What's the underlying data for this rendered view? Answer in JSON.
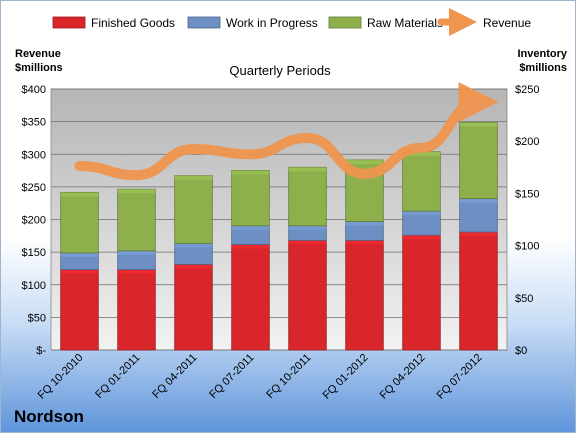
{
  "chart_data": {
    "type": "bar",
    "title": "Quarterly Periods",
    "company": "Nordson",
    "categories": [
      "FQ 10-2010",
      "FQ 01-2011",
      "FQ 04-2011",
      "FQ 07-2011",
      "FQ 10-2011",
      "FQ 01-2012",
      "FQ 04-2012",
      "FQ 07-2012"
    ],
    "stacked": true,
    "series": [
      {
        "name": "Finished Goods",
        "color": "#d9262b",
        "axis": "right",
        "values": [
          77,
          77,
          82,
          101,
          105,
          105,
          110,
          113
        ]
      },
      {
        "name": "Work in Progress",
        "color": "#6d8fc3",
        "axis": "right",
        "values": [
          16,
          18,
          20,
          18,
          14,
          18,
          23,
          32
        ]
      },
      {
        "name": "Raw Materials",
        "color": "#8db04c",
        "axis": "right",
        "values": [
          58,
          59,
          65,
          53,
          56,
          59,
          57,
          73
        ]
      },
      {
        "name": "Revenue",
        "color": "#f0954f",
        "axis": "left",
        "type": "line",
        "values": [
          282,
          268,
          308,
          300,
          325,
          270,
          310,
          380
        ]
      }
    ],
    "left_axis": {
      "label_line1": "Revenue",
      "label_line2": "$millions",
      "ylim": [
        0,
        400
      ],
      "ticks": [
        "$-",
        "$50",
        "$100",
        "$150",
        "$200",
        "$250",
        "$300",
        "$350",
        "$400"
      ]
    },
    "right_axis": {
      "label_line1": "Inventory",
      "label_line2": "$millions",
      "ylim": [
        0,
        250
      ],
      "ticks": [
        "$0",
        "$50",
        "$100",
        "$150",
        "$200",
        "$250"
      ]
    },
    "grid": true,
    "legend_position": "top"
  }
}
